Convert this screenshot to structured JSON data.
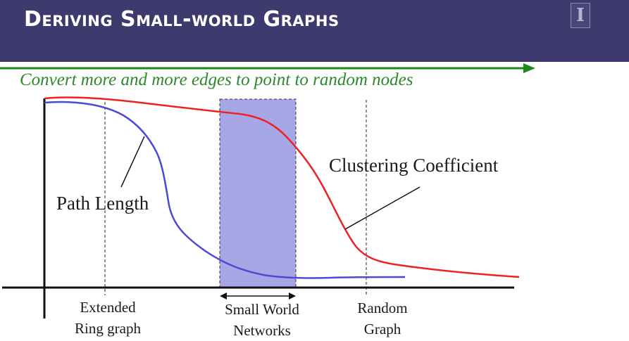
{
  "header": {
    "title": "Deriving Small-world Graphs",
    "logo_letter": "I"
  },
  "diagram": {
    "subtitle": "Convert more and more edges to point to random nodes",
    "curve_labels": {
      "path_length": "Path Length",
      "clustering": "Clustering Coefficient"
    },
    "axis_labels": {
      "extended_line1": "Extended",
      "extended_line2": "Ring graph",
      "small_world_line1": "Small World",
      "small_world_line2": "Networks",
      "random_line1": "Random",
      "random_line2": "Graph"
    },
    "colors": {
      "header_bg": "#3f3a6e",
      "arrow": "#1a8a1a",
      "clustering_curve": "#ee2222",
      "path_length_curve": "#4a4ad6",
      "band": "#a7a7e6"
    }
  }
}
